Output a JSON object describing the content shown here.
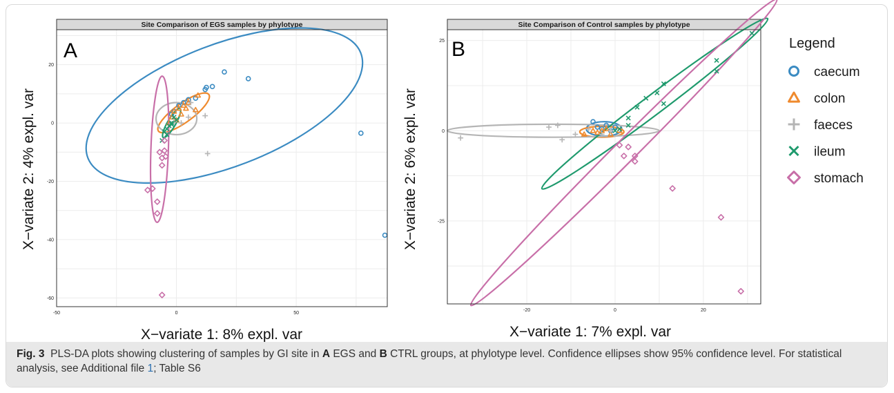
{
  "chart_data": [
    {
      "type": "scatter",
      "panel_label": "A",
      "title": "Site Comparison of EGS samples by phylotype",
      "xlabel": "X−variate 1: 8% expl. var",
      "ylabel": "X−variate 2: 4% expl. var",
      "xlim": [
        -50,
        88
      ],
      "ylim": [
        -63,
        32
      ],
      "xticks": [
        -50,
        0,
        50
      ],
      "yticks": [
        20,
        0,
        -20,
        -40,
        -60
      ],
      "grid": true,
      "series": [
        {
          "name": "caecum",
          "marker": "circle",
          "points": [
            [
              20,
              17.5
            ],
            [
              30,
              15.2
            ],
            [
              15,
              12.5
            ],
            [
              12.5,
              12.2
            ],
            [
              12,
              11.5
            ],
            [
              8,
              8.5
            ],
            [
              5,
              8
            ],
            [
              3,
              7
            ],
            [
              1,
              6
            ],
            [
              -1,
              4
            ],
            [
              -2,
              3
            ],
            [
              77,
              -3.5
            ],
            [
              87,
              -38.5
            ]
          ]
        },
        {
          "name": "colon",
          "marker": "triangle",
          "points": [
            [
              9,
              9.5
            ],
            [
              5,
              7
            ],
            [
              3,
              6
            ],
            [
              1,
              5
            ],
            [
              -1,
              4
            ],
            [
              -2,
              2
            ],
            [
              0,
              1
            ],
            [
              2,
              3
            ],
            [
              8,
              4.5
            ],
            [
              -3,
              0
            ],
            [
              4,
              5
            ]
          ]
        },
        {
          "name": "faeces",
          "marker": "plus",
          "points": [
            [
              12,
              2.5
            ],
            [
              13,
              -10.5
            ],
            [
              5,
              2
            ],
            [
              6,
              7
            ],
            [
              2,
              0
            ],
            [
              -1,
              0.5
            ]
          ]
        },
        {
          "name": "ileum",
          "marker": "x",
          "points": [
            [
              -1,
              2
            ],
            [
              -2,
              0
            ],
            [
              -3,
              -1
            ],
            [
              -4,
              -2
            ],
            [
              -5,
              -3
            ],
            [
              0,
              1
            ],
            [
              -6,
              -6
            ],
            [
              -2,
              -0.5
            ],
            [
              -4,
              -4
            ]
          ]
        },
        {
          "name": "stomach",
          "marker": "diamond",
          "points": [
            [
              -5,
              -6
            ],
            [
              -5,
              -9.5
            ],
            [
              -6,
              -12
            ],
            [
              -4.5,
              -11.5
            ],
            [
              -6,
              -14.5
            ],
            [
              -7,
              -10
            ],
            [
              -10,
              -22.5
            ],
            [
              -12,
              -23
            ],
            [
              -8,
              -27
            ],
            [
              -8,
              -31
            ],
            [
              -6,
              -59
            ]
          ]
        }
      ],
      "ellipses": [
        {
          "series": "caecum",
          "cx": 20,
          "cy": 6,
          "rx": 61,
          "ry": 21,
          "angle": 21
        },
        {
          "series": "colon",
          "cx": 3,
          "cy": 3.5,
          "rx": 13,
          "ry": 3.2,
          "angle": 36
        },
        {
          "series": "faeces",
          "cx": 0,
          "cy": 1.5,
          "rx": 8.5,
          "ry": 5.5,
          "angle": 0
        },
        {
          "series": "ileum",
          "cx": -2,
          "cy": 0,
          "rx": 7,
          "ry": 1.4,
          "angle": 60
        },
        {
          "series": "stomach",
          "cx": -7,
          "cy": -9,
          "rx": 30.5,
          "ry": 3,
          "angle": 88
        }
      ]
    },
    {
      "type": "scatter",
      "panel_label": "B",
      "title": "Site Comparison of Control samples by phylotype",
      "xlabel": "X−variate 1: 7% expl. var",
      "ylabel": "X−variate 2: 6% expl. var",
      "xlim": [
        -38,
        33
      ],
      "ylim": [
        -48,
        28
      ],
      "xticks": [
        -20,
        0,
        20
      ],
      "yticks": [
        25,
        0,
        -25
      ],
      "grid": true,
      "series": [
        {
          "name": "caecum",
          "marker": "circle",
          "points": [
            [
              -5,
              2.5
            ],
            [
              -4,
              1
            ],
            [
              -3,
              0.5
            ],
            [
              -2,
              1.5
            ],
            [
              -1,
              0
            ],
            [
              0,
              1
            ]
          ]
        },
        {
          "name": "colon",
          "marker": "triangle",
          "points": [
            [
              -7,
              -1
            ],
            [
              -5,
              0
            ],
            [
              -3,
              0
            ],
            [
              -1,
              -1
            ],
            [
              1,
              0
            ],
            [
              -2,
              0.5
            ],
            [
              -4,
              -0.5
            ]
          ]
        },
        {
          "name": "faeces",
          "marker": "plus",
          "points": [
            [
              -35,
              -2
            ],
            [
              -15,
              1
            ],
            [
              -13,
              1.5
            ],
            [
              -12,
              -2.5
            ],
            [
              -9,
              -1
            ],
            [
              -6,
              0.5
            ],
            [
              -3,
              -1
            ],
            [
              -1,
              0
            ]
          ]
        },
        {
          "name": "ileum",
          "marker": "x",
          "points": [
            [
              31,
              27
            ],
            [
              23,
              19.5
            ],
            [
              23,
              16.5
            ],
            [
              11,
              13
            ],
            [
              9.5,
              10.5
            ],
            [
              11,
              7.5
            ],
            [
              7,
              9
            ],
            [
              5,
              6.5
            ],
            [
              3,
              3.5
            ],
            [
              3,
              1.5
            ],
            [
              1,
              0.5
            ],
            [
              0,
              0
            ]
          ]
        },
        {
          "name": "stomach",
          "marker": "diamond",
          "points": [
            [
              1,
              -4
            ],
            [
              2,
              -7
            ],
            [
              3,
              -4.5
            ],
            [
              4.5,
              -7
            ],
            [
              4.5,
              -8.5
            ],
            [
              13,
              -16
            ],
            [
              24,
              -24
            ],
            [
              28.5,
              -44.5
            ]
          ]
        }
      ],
      "ellipses": [
        {
          "series": "caecum",
          "cx": -2.5,
          "cy": 0.5,
          "rx": 4,
          "ry": 2,
          "angle": 0
        },
        {
          "series": "colon",
          "cx": -3,
          "cy": -0.3,
          "rx": 5,
          "ry": 1.5,
          "angle": 0
        },
        {
          "series": "faeces",
          "cx": -14,
          "cy": 0,
          "rx": 24,
          "ry": 1.8,
          "angle": 0
        },
        {
          "series": "ileum",
          "cx": 9,
          "cy": 7.5,
          "rx": 32,
          "ry": 2.7,
          "angle": 37
        },
        {
          "series": "stomach",
          "cx": 2,
          "cy": -6,
          "rx": 49,
          "ry": 3,
          "angle": 45
        }
      ]
    }
  ],
  "legend": {
    "title": "Legend",
    "items": [
      {
        "label": "caecum",
        "marker": "circle"
      },
      {
        "label": "colon",
        "marker": "triangle"
      },
      {
        "label": "faeces",
        "marker": "plus"
      },
      {
        "label": "ileum",
        "marker": "x"
      },
      {
        "label": "stomach",
        "marker": "diamond"
      }
    ]
  },
  "colors": {
    "caecum": "#3b8bc2",
    "colon": "#ef8a2e",
    "faeces": "#b5b5b5",
    "ileum": "#1f9a6d",
    "stomach": "#c86fa8"
  },
  "caption": {
    "label": "Fig. 3",
    "part1": "PLS-DA plots showing clustering of samples by GI site in",
    "bold_a": "A",
    "part2": "EGS and",
    "bold_b": "B",
    "part3": "CTRL groups, at phylotype level. Confidence ellipses show 95% confidence level. For statistical analysis, see Additional file",
    "link_text": "1",
    "part4": "; Table S6"
  }
}
